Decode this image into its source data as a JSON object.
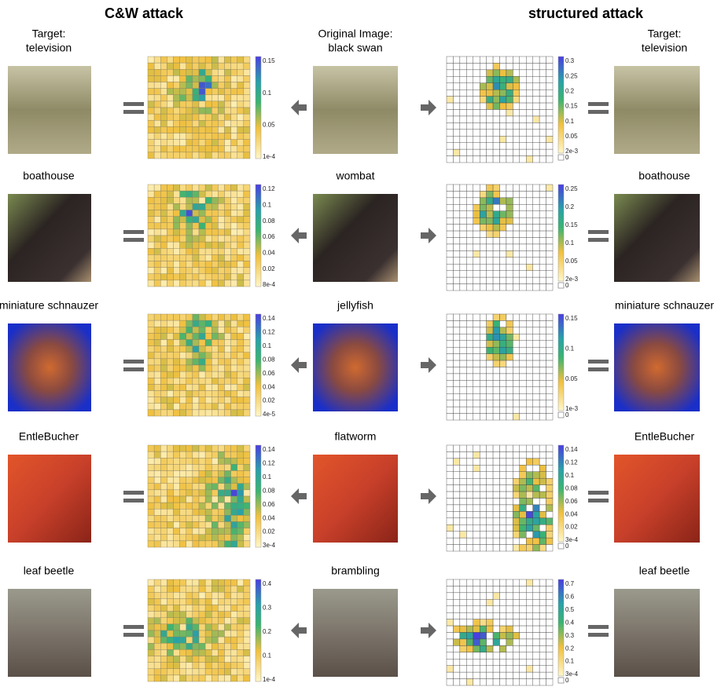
{
  "headers": [
    "C&W attack",
    "structured attack"
  ],
  "rows": [
    {
      "target_label": [
        "Target:",
        "television"
      ],
      "original_label": [
        "Original Image:",
        "black swan"
      ],
      "cw_colorbar": [
        "0.15",
        "0.1",
        "0.05",
        "1e-4"
      ],
      "structured_colorbar": [
        "0.3",
        "0.25",
        "0.2",
        "0.15",
        "0.1",
        "0.05",
        "2e-3",
        "0"
      ]
    },
    {
      "target_label": [
        "boathouse"
      ],
      "original_label": [
        "wombat"
      ],
      "cw_colorbar": [
        "0.12",
        "0.1",
        "0.08",
        "0.06",
        "0.04",
        "0.02",
        "8e-4"
      ],
      "structured_colorbar": [
        "0.25",
        "0.2",
        "0.15",
        "0.1",
        "0.05",
        "2e-3",
        "0"
      ]
    },
    {
      "target_label": [
        "miniature schnauzer"
      ],
      "original_label": [
        "jellyfish"
      ],
      "cw_colorbar": [
        "0.14",
        "0.12",
        "0.1",
        "0.08",
        "0.06",
        "0.04",
        "0.02",
        "4e-5"
      ],
      "structured_colorbar": [
        "0.15",
        "0.1",
        "0.05",
        "1e-3",
        "0"
      ]
    },
    {
      "target_label": [
        "EntleBucher"
      ],
      "original_label": [
        "flatworm"
      ],
      "cw_colorbar": [
        "0.14",
        "0.12",
        "0.1",
        "0.08",
        "0.06",
        "0.04",
        "0.02",
        "3e-4"
      ],
      "structured_colorbar": [
        "0.14",
        "0.12",
        "0.1",
        "0.08",
        "0.06",
        "0.04",
        "0.02",
        "3e-4",
        "0"
      ]
    },
    {
      "target_label": [
        "leaf beetle"
      ],
      "original_label": [
        "brambling"
      ],
      "cw_colorbar": [
        "0.4",
        "0.3",
        "0.2",
        "0.1",
        "1e-4"
      ],
      "structured_colorbar": [
        "0.7",
        "0.6",
        "0.5",
        "0.4",
        "0.3",
        "0.2",
        "0.1",
        "3e-4",
        "0"
      ]
    }
  ]
}
